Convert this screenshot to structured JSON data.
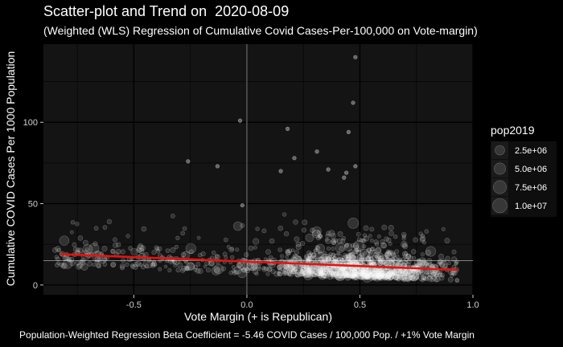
{
  "chart_data": {
    "type": "scatter",
    "title": "Scatter-plot and Trend on  2020-08-09",
    "subtitle": "(Weighted (WLS) Regression of Cumulative Covid Cases-Per-100,000 on Vote-margin)",
    "xlabel": "Vote Margin (+ is Republican)",
    "ylabel": "Cumulative COVID Cases Per 1000 Population",
    "caption": "Population-Weighted Regression Beta Coefficient = -5.46 COVID Cases / 100,000 Pop. / +1% Vote Margin",
    "xlim": [
      -0.9,
      1.0
    ],
    "ylim": [
      -6,
      148
    ],
    "x_ticks": [
      -0.5,
      0.0,
      0.5,
      1.0
    ],
    "x_tick_labels": [
      "-0.5",
      "0.0",
      "0.5",
      "1.0"
    ],
    "y_ticks": [
      0,
      50,
      100
    ],
    "y_tick_labels": [
      "0",
      "50",
      "100"
    ],
    "reference_lines": {
      "vline_x": 0,
      "hline_y": 15
    },
    "trend_line": {
      "color": "#e8130f",
      "x": [
        -0.82,
        0.93
      ],
      "y": [
        18.9,
        9.3
      ]
    },
    "legend": {
      "title": "pop2019",
      "position": "right",
      "items": [
        {
          "label": "2.5e+06",
          "value": 2500000
        },
        {
          "label": "5.0e+06",
          "value": 5000000
        },
        {
          "label": "7.5e+06",
          "value": 7500000
        },
        {
          "label": "1.0e+07",
          "value": 10000000
        }
      ]
    },
    "highlight_points": [
      {
        "x": 0.48,
        "y": 140
      },
      {
        "x": 0.47,
        "y": 112
      },
      {
        "x": -0.03,
        "y": 101
      },
      {
        "x": 0.18,
        "y": 96
      },
      {
        "x": 0.45,
        "y": 94
      },
      {
        "x": 0.31,
        "y": 82
      },
      {
        "x": 0.21,
        "y": 78
      },
      {
        "x": -0.26,
        "y": 76
      },
      {
        "x": -0.13,
        "y": 73
      },
      {
        "x": 0.15,
        "y": 70
      },
      {
        "x": 0.43,
        "y": 66
      },
      {
        "x": 0.44,
        "y": 69
      },
      {
        "x": -0.02,
        "y": 49
      },
      {
        "x": 0.48,
        "y": 73
      },
      {
        "x": 0.36,
        "y": 71
      }
    ],
    "bulk_points": {
      "count": 1400,
      "x_range": [
        -0.85,
        0.93
      ],
      "density_peak_x": 0.5,
      "y_typical": [
        0,
        30
      ]
    },
    "grid": true,
    "colors": {
      "background": "#000000",
      "panel": "#141414",
      "grid_major": "#000000",
      "points": "#ffffff",
      "reference": "#808080"
    }
  }
}
